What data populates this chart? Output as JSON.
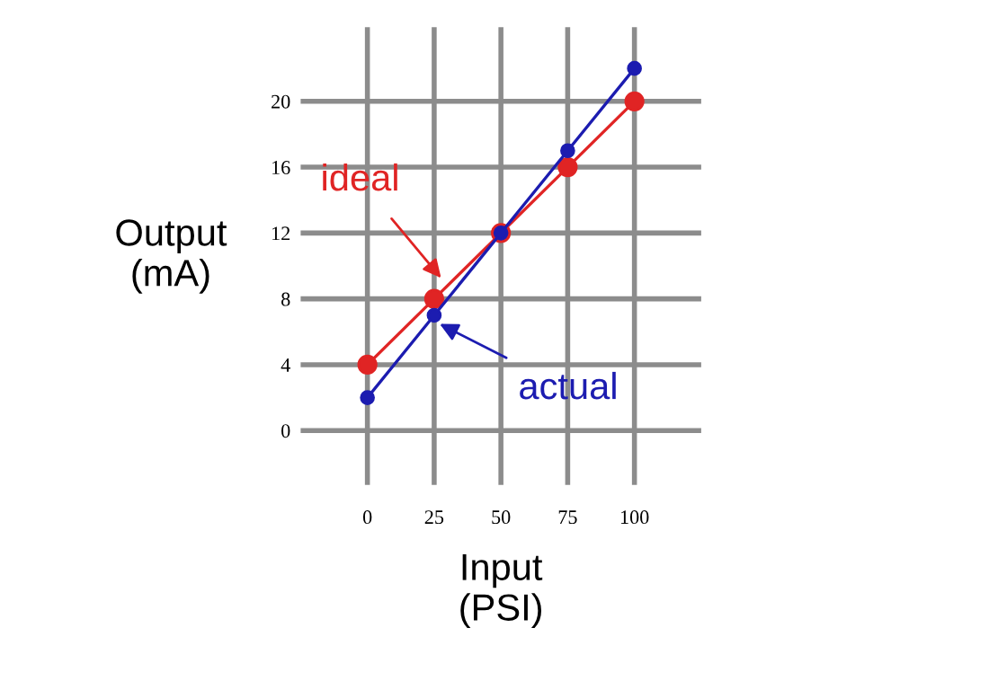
{
  "chart_data": {
    "type": "line",
    "xlabel": "Input\n(PSI)",
    "ylabel": "Output\n(mA)",
    "x": [
      0,
      25,
      50,
      75,
      100
    ],
    "series": [
      {
        "name": "ideal",
        "color": "#e02424",
        "values": [
          4,
          8,
          12,
          16,
          20
        ]
      },
      {
        "name": "actual",
        "color": "#1c1cb0",
        "values": [
          2,
          7,
          12,
          17,
          22
        ]
      }
    ],
    "xlim": [
      -25,
      125
    ],
    "ylim": [
      -3.3,
      24.5
    ],
    "xticks": [
      0,
      25,
      50,
      75,
      100
    ],
    "yticks": [
      0,
      4,
      8,
      12,
      16,
      20
    ],
    "grid": true,
    "marker": "circle",
    "line_style": "solid",
    "legend": false
  }
}
